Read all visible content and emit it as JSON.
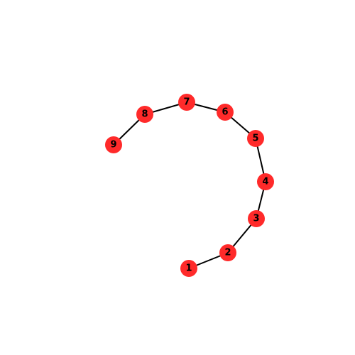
{
  "graph": {
    "node_color": "#ff2a2a",
    "edge_color": "#000000",
    "nodes": [
      {
        "id": "1",
        "label": "1"
      },
      {
        "id": "2",
        "label": "2"
      },
      {
        "id": "3",
        "label": "3"
      },
      {
        "id": "4",
        "label": "4"
      },
      {
        "id": "5",
        "label": "5"
      },
      {
        "id": "6",
        "label": "6"
      },
      {
        "id": "7",
        "label": "7"
      },
      {
        "id": "8",
        "label": "8"
      },
      {
        "id": "9",
        "label": "9"
      }
    ],
    "edges": [
      [
        "1",
        "2"
      ],
      [
        "2",
        "3"
      ],
      [
        "3",
        "4"
      ],
      [
        "4",
        "5"
      ],
      [
        "5",
        "6"
      ],
      [
        "6",
        "7"
      ],
      [
        "7",
        "8"
      ],
      [
        "8",
        "9"
      ]
    ]
  }
}
